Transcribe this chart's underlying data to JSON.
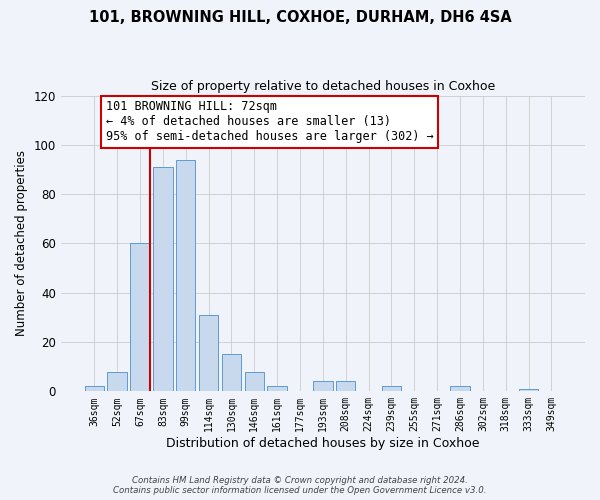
{
  "title": "101, BROWNING HILL, COXHOE, DURHAM, DH6 4SA",
  "subtitle": "Size of property relative to detached houses in Coxhoe",
  "xlabel": "Distribution of detached houses by size in Coxhoe",
  "ylabel": "Number of detached properties",
  "bin_labels": [
    "36sqm",
    "52sqm",
    "67sqm",
    "83sqm",
    "99sqm",
    "114sqm",
    "130sqm",
    "146sqm",
    "161sqm",
    "177sqm",
    "193sqm",
    "208sqm",
    "224sqm",
    "239sqm",
    "255sqm",
    "271sqm",
    "286sqm",
    "302sqm",
    "318sqm",
    "333sqm",
    "349sqm"
  ],
  "bar_heights": [
    2,
    8,
    60,
    91,
    94,
    31,
    15,
    8,
    2,
    0,
    4,
    4,
    0,
    2,
    0,
    0,
    2,
    0,
    0,
    1,
    0
  ],
  "bar_color": "#c8d9ee",
  "bar_edge_color": "#5b9bd5",
  "vline_index": 2,
  "vline_color": "#cc0000",
  "ylim": [
    0,
    120
  ],
  "yticks": [
    0,
    20,
    40,
    60,
    80,
    100,
    120
  ],
  "annotation_title": "101 BROWNING HILL: 72sqm",
  "annotation_line1": "← 4% of detached houses are smaller (13)",
  "annotation_line2": "95% of semi-detached houses are larger (302) →",
  "annotation_box_color": "#ffffff",
  "annotation_box_edge": "#cc0000",
  "footer_line1": "Contains HM Land Registry data © Crown copyright and database right 2024.",
  "footer_line2": "Contains public sector information licensed under the Open Government Licence v3.0.",
  "background_color": "#f0f4fa",
  "grid_color": "#cccccc"
}
